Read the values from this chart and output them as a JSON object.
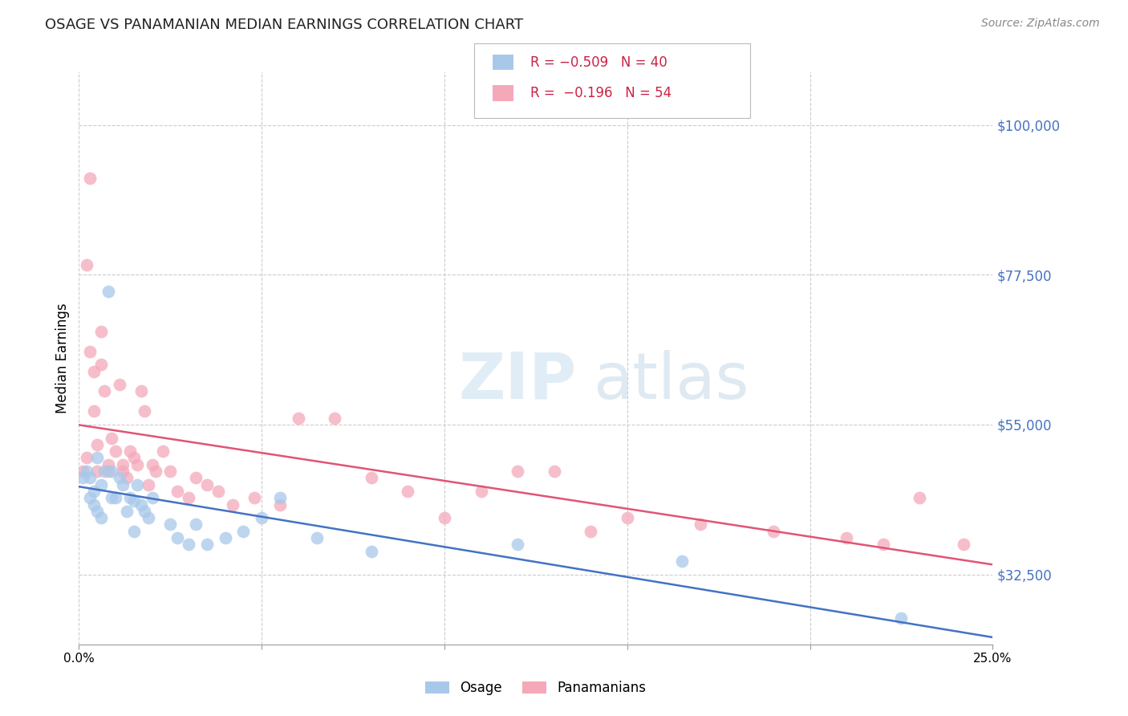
{
  "title": "OSAGE VS PANAMANIAN MEDIAN EARNINGS CORRELATION CHART",
  "source": "Source: ZipAtlas.com",
  "ylabel": "Median Earnings",
  "yticks": [
    32500,
    55000,
    77500,
    100000
  ],
  "ytick_labels": [
    "$32,500",
    "$55,000",
    "$77,500",
    "$100,000"
  ],
  "xlim": [
    0.0,
    0.25
  ],
  "ylim": [
    22000,
    108000
  ],
  "legend_label1": "Osage",
  "legend_label2": "Panamanians",
  "blue_color": "#a8c8ea",
  "pink_color": "#f4a8ba",
  "blue_line_color": "#4472c4",
  "pink_line_color": "#e05575",
  "title_color": "#222222",
  "source_color": "#888888",
  "ytick_color": "#4472c4",
  "grid_color": "#cccccc",
  "osage_x": [
    0.001,
    0.002,
    0.003,
    0.003,
    0.004,
    0.004,
    0.005,
    0.005,
    0.006,
    0.006,
    0.007,
    0.008,
    0.009,
    0.009,
    0.01,
    0.011,
    0.012,
    0.013,
    0.014,
    0.015,
    0.015,
    0.016,
    0.017,
    0.018,
    0.019,
    0.02,
    0.025,
    0.027,
    0.03,
    0.032,
    0.035,
    0.04,
    0.045,
    0.05,
    0.055,
    0.065,
    0.08,
    0.12,
    0.165,
    0.225
  ],
  "osage_y": [
    47000,
    48000,
    47000,
    44000,
    45000,
    43000,
    50000,
    42000,
    46000,
    41000,
    48000,
    75000,
    48000,
    44000,
    44000,
    47000,
    46000,
    42000,
    44000,
    43500,
    39000,
    46000,
    43000,
    42000,
    41000,
    44000,
    40000,
    38000,
    37000,
    40000,
    37000,
    38000,
    39000,
    41000,
    44000,
    38000,
    36000,
    37000,
    34500,
    26000
  ],
  "panamanian_x": [
    0.001,
    0.002,
    0.002,
    0.003,
    0.003,
    0.004,
    0.004,
    0.005,
    0.005,
    0.006,
    0.006,
    0.007,
    0.008,
    0.008,
    0.009,
    0.01,
    0.011,
    0.012,
    0.012,
    0.013,
    0.014,
    0.015,
    0.016,
    0.017,
    0.018,
    0.019,
    0.02,
    0.021,
    0.023,
    0.025,
    0.027,
    0.03,
    0.032,
    0.035,
    0.038,
    0.042,
    0.048,
    0.055,
    0.06,
    0.07,
    0.08,
    0.09,
    0.1,
    0.11,
    0.12,
    0.13,
    0.14,
    0.15,
    0.17,
    0.19,
    0.21,
    0.22,
    0.23,
    0.242
  ],
  "panamanian_y": [
    48000,
    50000,
    79000,
    92000,
    66000,
    63000,
    57000,
    52000,
    48000,
    69000,
    64000,
    60000,
    49000,
    48000,
    53000,
    51000,
    61000,
    49000,
    48000,
    47000,
    51000,
    50000,
    49000,
    60000,
    57000,
    46000,
    49000,
    48000,
    51000,
    48000,
    45000,
    44000,
    47000,
    46000,
    45000,
    43000,
    44000,
    43000,
    56000,
    56000,
    47000,
    45000,
    41000,
    45000,
    48000,
    48000,
    39000,
    41000,
    40000,
    39000,
    38000,
    37000,
    44000,
    37000
  ]
}
